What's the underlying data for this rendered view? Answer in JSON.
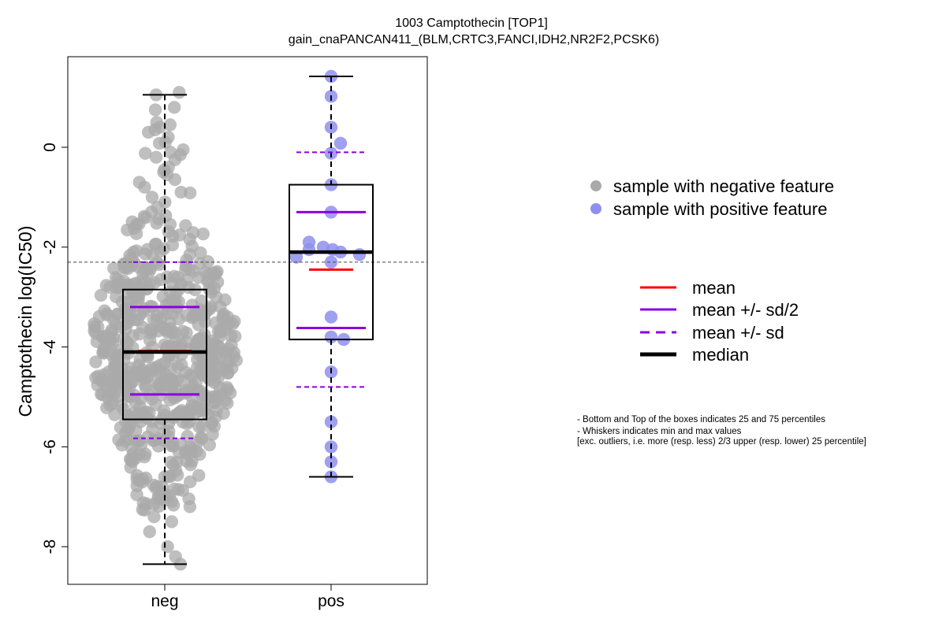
{
  "chart_data": {
    "type": "box",
    "title": "1003 Camptothecin [TOP1]",
    "subtitle": "gain_cnaPANCAN411_(BLM,CRTC3,FANCI,IDH2,NR2F2,PCSK6)",
    "ylabel": "Camptothecin log(IC50)",
    "xlabel": "",
    "ylim": [
      -8.75,
      1.8
    ],
    "yticks": [
      0,
      -2,
      -4,
      -6,
      -8
    ],
    "ytick_labels": [
      "0",
      "-2",
      "-4",
      "-6",
      "-8"
    ],
    "categories": [
      "neg",
      "pos"
    ],
    "reference_line_y": -2.3,
    "colors": {
      "neg_points": "#a9a9a9",
      "pos_points": "#8f8fef",
      "mean": "#ff0000",
      "sd_half": "#8b00e0",
      "sd": "#8b00e0",
      "median": "#000000"
    },
    "groups": [
      {
        "name": "neg",
        "whisker_min": -8.35,
        "q1": -5.45,
        "median": -4.1,
        "q3": -2.85,
        "whisker_max": 1.05,
        "mean": -4.08,
        "mean_plus_half_sd": -3.2,
        "mean_minus_half_sd": -4.95,
        "mean_plus_sd": -2.3,
        "mean_minus_sd": -5.83,
        "n_points_approx": 650,
        "points_sample": [
          1.1,
          1.05,
          0.8,
          0.75,
          0.5,
          0.45,
          0.4,
          0.35,
          0.3,
          0.2,
          0.1,
          -0.05,
          -0.1,
          -0.15,
          -0.2,
          -0.25,
          -0.4,
          -0.45,
          -0.5,
          -0.55,
          -0.7,
          -0.8,
          -0.9,
          -1.0,
          -1.1,
          -1.2,
          -7.4,
          -7.5,
          -7.7,
          -8.0,
          -8.2,
          -8.35
        ]
      },
      {
        "name": "pos",
        "whisker_min": -6.6,
        "q1": -3.85,
        "median": -2.1,
        "q3": -0.75,
        "whisker_max": 1.42,
        "mean": -2.45,
        "mean_plus_half_sd": -1.3,
        "mean_minus_half_sd": -3.62,
        "mean_plus_sd": -0.1,
        "mean_minus_sd": -4.8,
        "points": [
          1.42,
          1.02,
          0.4,
          0.08,
          -0.12,
          -0.75,
          -1.3,
          -1.9,
          -2.0,
          -2.05,
          -2.1,
          -2.15,
          -2.2,
          -2.05,
          -2.3,
          -3.4,
          -3.8,
          -3.85,
          -4.5,
          -5.5,
          -6.0,
          -6.3,
          -6.6
        ]
      }
    ],
    "legend_points": [
      {
        "label": "sample with negative feature",
        "color": "#a9a9a9"
      },
      {
        "label": "sample with positive feature",
        "color": "#8f8fef"
      }
    ],
    "legend_lines": [
      {
        "label": "mean",
        "color": "#ff0000",
        "style": "solid",
        "width": 3
      },
      {
        "label": "mean +/- sd/2",
        "color": "#8b00e0",
        "style": "solid",
        "width": 3
      },
      {
        "label": "mean +/- sd",
        "color": "#8b00e0",
        "style": "dashed",
        "width": 3
      },
      {
        "label": "median",
        "color": "#000000",
        "style": "solid",
        "width": 5
      }
    ],
    "notes": [
      "- Bottom and Top of the boxes indicates 25 and 75 percentiles",
      "- Whiskers indicates min and max values",
      "[exc. outliers, i.e. more (resp. less) 2/3 upper (resp. lower) 25 percentile]"
    ]
  }
}
